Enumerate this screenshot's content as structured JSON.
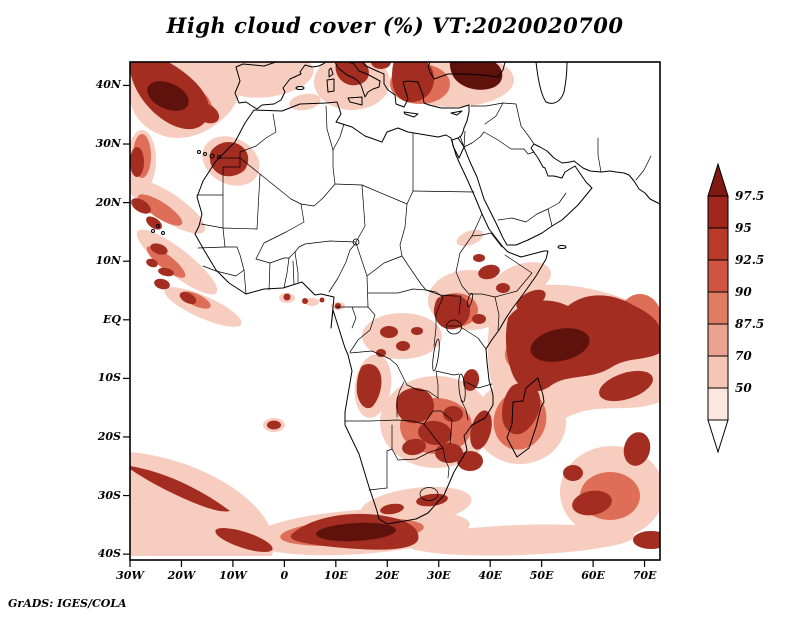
{
  "title": "High cloud cover (%) VT:2020020700",
  "attribution": "GrADS: IGES/COLA",
  "axes": {
    "y_ticks": [
      "40N",
      "30N",
      "20N",
      "10N",
      "EQ",
      "10S",
      "20S",
      "30S",
      "40S"
    ],
    "x_ticks": [
      "30W",
      "20W",
      "10W",
      "0",
      "10E",
      "20E",
      "30E",
      "40E",
      "50E",
      "60E",
      "70E"
    ]
  },
  "colorbar": {
    "tick_labels": [
      "97.5",
      "95",
      "92.5",
      "90",
      "87.5",
      "70",
      "50"
    ],
    "band_colors_top_to_bottom": [
      "#7f1911",
      "#9e261c",
      "#ba3a2a",
      "#cf5542",
      "#e07b64",
      "#eda391",
      "#f5c6b6",
      "#fbe7e0",
      "#ffffff"
    ]
  },
  "palette": {
    "shade_light": "#f7cdbf",
    "shade_mid": "#de6e57",
    "shade_dark": "#a32d20",
    "shade_darkest": "#5f120c"
  }
}
